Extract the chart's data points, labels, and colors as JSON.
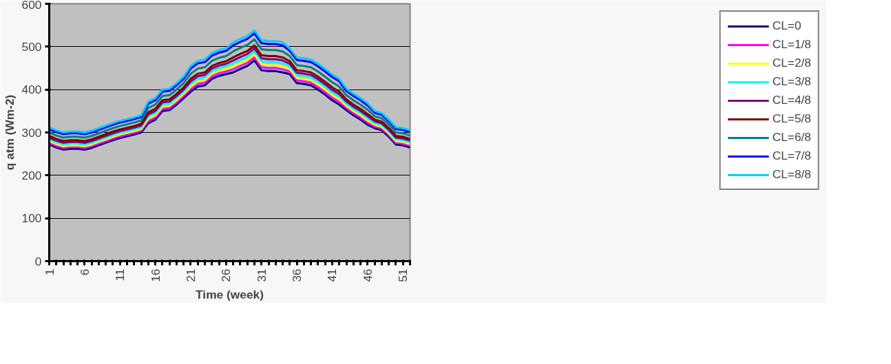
{
  "chart_data": {
    "type": "line",
    "xlabel": "Time (week)",
    "ylabel": "q atm (Wm-2)",
    "x": [
      1,
      2,
      3,
      4,
      5,
      6,
      7,
      8,
      9,
      10,
      11,
      12,
      13,
      14,
      15,
      16,
      17,
      18,
      19,
      20,
      21,
      22,
      23,
      24,
      25,
      26,
      27,
      28,
      29,
      30,
      31,
      32,
      33,
      34,
      35,
      36,
      37,
      38,
      39,
      40,
      41,
      42,
      43,
      44,
      45,
      46,
      47,
      48,
      49,
      50,
      51,
      52
    ],
    "xlim": [
      1,
      52
    ],
    "xticks": [
      {
        "value": 1,
        "label": "1"
      },
      {
        "value": 2,
        "label": null
      },
      {
        "value": 3,
        "label": null
      },
      {
        "value": 4,
        "label": null
      },
      {
        "value": 5,
        "label": null
      },
      {
        "value": 6,
        "label": "6"
      },
      {
        "value": 7,
        "label": null
      },
      {
        "value": 8,
        "label": null
      },
      {
        "value": 9,
        "label": null
      },
      {
        "value": 10,
        "label": null
      },
      {
        "value": 11,
        "label": "11"
      },
      {
        "value": 12,
        "label": null
      },
      {
        "value": 13,
        "label": null
      },
      {
        "value": 14,
        "label": null
      },
      {
        "value": 15,
        "label": null
      },
      {
        "value": 16,
        "label": "16"
      },
      {
        "value": 17,
        "label": null
      },
      {
        "value": 18,
        "label": null
      },
      {
        "value": 19,
        "label": null
      },
      {
        "value": 20,
        "label": null
      },
      {
        "value": 21,
        "label": "21"
      },
      {
        "value": 22,
        "label": null
      },
      {
        "value": 23,
        "label": null
      },
      {
        "value": 24,
        "label": null
      },
      {
        "value": 25,
        "label": null
      },
      {
        "value": 26,
        "label": "26"
      },
      {
        "value": 27,
        "label": null
      },
      {
        "value": 28,
        "label": null
      },
      {
        "value": 29,
        "label": null
      },
      {
        "value": 30,
        "label": null
      },
      {
        "value": 31,
        "label": "31"
      },
      {
        "value": 32,
        "label": null
      },
      {
        "value": 33,
        "label": null
      },
      {
        "value": 34,
        "label": null
      },
      {
        "value": 35,
        "label": null
      },
      {
        "value": 36,
        "label": "36"
      },
      {
        "value": 37,
        "label": null
      },
      {
        "value": 38,
        "label": null
      },
      {
        "value": 39,
        "label": null
      },
      {
        "value": 40,
        "label": null
      },
      {
        "value": 41,
        "label": "41"
      },
      {
        "value": 42,
        "label": null
      },
      {
        "value": 43,
        "label": null
      },
      {
        "value": 44,
        "label": null
      },
      {
        "value": 45,
        "label": null
      },
      {
        "value": 46,
        "label": "46"
      },
      {
        "value": 47,
        "label": null
      },
      {
        "value": 48,
        "label": null
      },
      {
        "value": 49,
        "label": null
      },
      {
        "value": 50,
        "label": null
      },
      {
        "value": 51,
        "label": "51"
      },
      {
        "value": 52,
        "label": null
      }
    ],
    "ylim": [
      0,
      600
    ],
    "yticks": [
      0,
      100,
      200,
      300,
      400,
      500,
      600
    ],
    "grid": "y",
    "legend": "right",
    "line_style": "solid",
    "series": [
      {
        "name": "CL=0",
        "color": "#000080",
        "values": [
          272,
          265,
          260,
          262,
          262,
          260,
          264,
          270,
          276,
          282,
          287,
          291,
          295,
          300,
          322,
          330,
          350,
          352,
          365,
          380,
          395,
          407,
          410,
          425,
          432,
          436,
          440,
          448,
          455,
          468,
          445,
          443,
          443,
          440,
          436,
          415,
          413,
          410,
          400,
          388,
          375,
          365,
          352,
          340,
          330,
          318,
          310,
          305,
          290,
          272,
          270,
          265
        ]
      },
      {
        "name": "CL=1/8",
        "color": "#ff00ff",
        "values": [
          276,
          269,
          264,
          266,
          266,
          264,
          268,
          274,
          280,
          286,
          291,
          295,
          299,
          304,
          327,
          335,
          355,
          357,
          370,
          385,
          401,
          413,
          416,
          431,
          438,
          442,
          447,
          455,
          462,
          475,
          452,
          450,
          450,
          447,
          442,
          421,
          419,
          416,
          406,
          394,
          381,
          371,
          357,
          345,
          335,
          323,
          314,
          309,
          294,
          276,
          274,
          269
        ]
      },
      {
        "name": "CL=2/8",
        "color": "#ffff00",
        "values": [
          280,
          273,
          268,
          270,
          270,
          268,
          272,
          278,
          284,
          290,
          295,
          299,
          303,
          308,
          332,
          340,
          360,
          362,
          375,
          390,
          407,
          419,
          422,
          437,
          444,
          448,
          454,
          462,
          469,
          482,
          459,
          457,
          457,
          454,
          448,
          427,
          425,
          422,
          412,
          400,
          387,
          377,
          362,
          350,
          340,
          328,
          318,
          313,
          298,
          280,
          278,
          273
        ]
      },
      {
        "name": "CL=3/8",
        "color": "#00ffff",
        "values": [
          284,
          277,
          272,
          274,
          274,
          272,
          276,
          282,
          288,
          294,
          299,
          303,
          307,
          312,
          337,
          345,
          365,
          367,
          380,
          395,
          413,
          425,
          428,
          443,
          450,
          454,
          461,
          469,
          476,
          489,
          466,
          464,
          464,
          461,
          454,
          433,
          431,
          428,
          418,
          406,
          393,
          383,
          367,
          355,
          345,
          333,
          322,
          317,
          302,
          284,
          282,
          277
        ]
      },
      {
        "name": "CL=4/8",
        "color": "#800080",
        "values": [
          288,
          281,
          276,
          278,
          278,
          276,
          280,
          286,
          292,
          298,
          303,
          307,
          311,
          316,
          342,
          350,
          370,
          372,
          385,
          400,
          419,
          431,
          434,
          449,
          456,
          460,
          468,
          476,
          483,
          496,
          473,
          471,
          471,
          468,
          460,
          439,
          437,
          434,
          424,
          412,
          399,
          389,
          372,
          360,
          350,
          338,
          326,
          321,
          306,
          288,
          286,
          281
        ]
      },
      {
        "name": "CL=5/8",
        "color": "#800000",
        "values": [
          292,
          285,
          280,
          282,
          282,
          280,
          284,
          290,
          296,
          302,
          307,
          311,
          315,
          320,
          347,
          355,
          375,
          377,
          390,
          405,
          425,
          437,
          440,
          455,
          462,
          466,
          475,
          483,
          490,
          503,
          480,
          478,
          478,
          475,
          466,
          445,
          443,
          440,
          430,
          418,
          405,
          395,
          377,
          365,
          355,
          343,
          330,
          325,
          310,
          292,
          290,
          285
        ]
      },
      {
        "name": "CL=6/8",
        "color": "#008080",
        "values": [
          300,
          293,
          288,
          290,
          290,
          288,
          292,
          298,
          304,
          310,
          315,
          319,
          323,
          328,
          357,
          365,
          385,
          387,
          400,
          415,
          437,
          449,
          452,
          467,
          474,
          478,
          489,
          497,
          504,
          517,
          494,
          492,
          492,
          489,
          478,
          457,
          455,
          452,
          442,
          430,
          417,
          407,
          387,
          375,
          365,
          353,
          338,
          333,
          318,
          300,
          298,
          293
        ]
      },
      {
        "name": "CL=7/8",
        "color": "#0000ff",
        "values": [
          308,
          301,
          296,
          298,
          298,
          296,
          300,
          306,
          312,
          318,
          323,
          327,
          331,
          336,
          367,
          375,
          395,
          397,
          410,
          425,
          449,
          461,
          464,
          479,
          486,
          490,
          503,
          511,
          518,
          531,
          508,
          506,
          506,
          503,
          490,
          469,
          467,
          464,
          454,
          442,
          429,
          419,
          397,
          385,
          375,
          363,
          346,
          341,
          326,
          308,
          306,
          301
        ]
      },
      {
        "name": "CL=8/8",
        "color": "#00ccff",
        "values": [
          312,
          305,
          300,
          302,
          302,
          300,
          304,
          310,
          316,
          322,
          327,
          331,
          335,
          340,
          372,
          380,
          400,
          402,
          415,
          430,
          455,
          467,
          470,
          485,
          492,
          496,
          510,
          518,
          525,
          538,
          515,
          513,
          513,
          510,
          496,
          475,
          473,
          470,
          460,
          448,
          435,
          425,
          402,
          390,
          380,
          368,
          350,
          345,
          330,
          312,
          310,
          305
        ]
      }
    ]
  }
}
